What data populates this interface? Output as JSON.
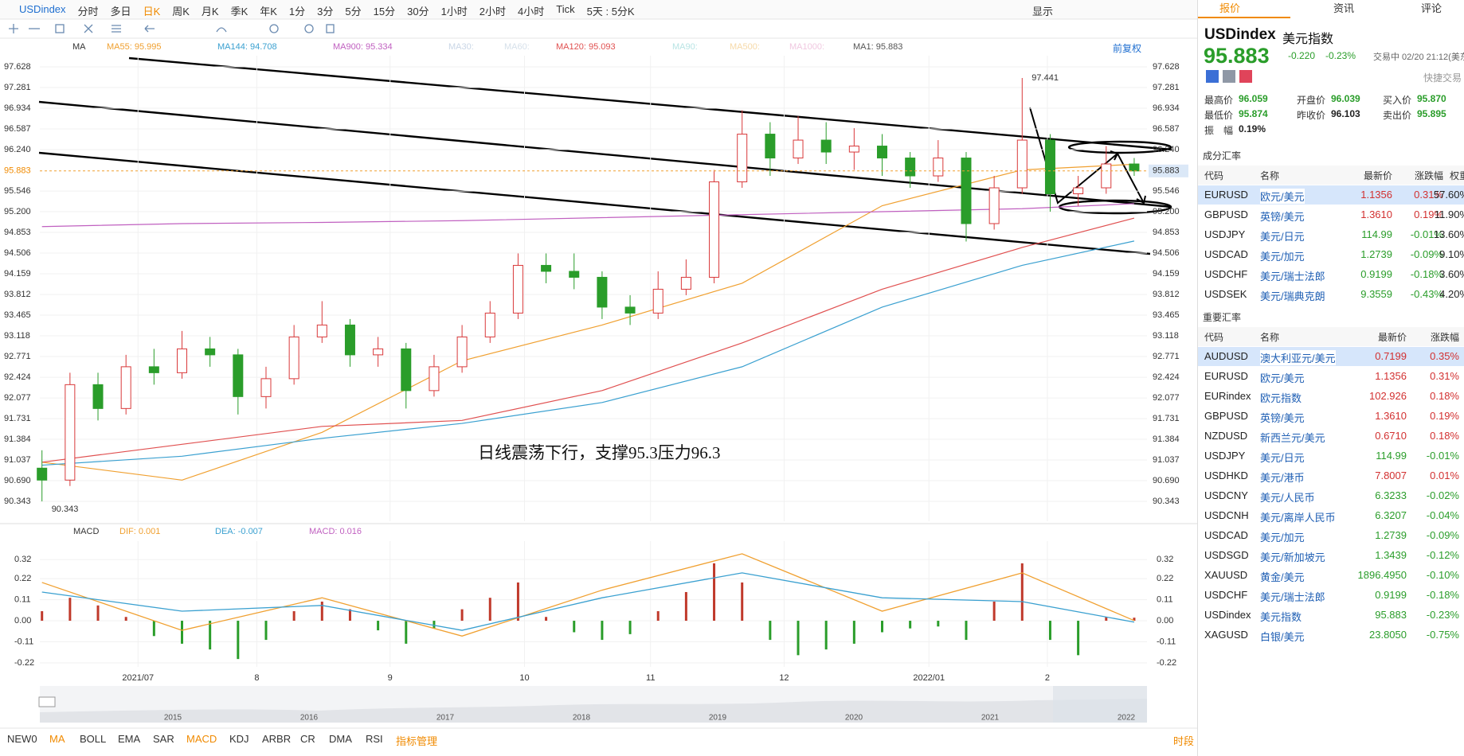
{
  "toolbar": {
    "symbol": "USDindex",
    "periods": [
      "分时",
      "多日",
      "日K",
      "周K",
      "月K",
      "季K",
      "年K",
      "1分",
      "3分",
      "5分",
      "15分",
      "30分",
      "1小时",
      "2小时",
      "4小时",
      "Tick",
      "5天 : 5分K"
    ],
    "active": 2,
    "display": "显示"
  },
  "ma_legend": {
    "name": "MA",
    "adjust": "前复权",
    "items": [
      {
        "label": "MA55: 95.995",
        "color": "#f0a030"
      },
      {
        "label": "MA144: 94.708",
        "color": "#3aa0d0"
      },
      {
        "label": "MA900: 95.334",
        "color": "#c060c0"
      },
      {
        "label": "MA30:",
        "color": "#c9d6e6"
      },
      {
        "label": "MA60:",
        "color": "#d6e0ea"
      },
      {
        "label": "MA120: 95.093",
        "color": "#e05050"
      },
      {
        "label": "MA90:",
        "color": "#b8e4e4"
      },
      {
        "label": "MA500:",
        "color": "#f6d9a8"
      },
      {
        "label": "MA1000:",
        "color": "#f0c8e0"
      },
      {
        "label": "MA1: 95.883",
        "color": "#555555"
      }
    ]
  },
  "chart_data": [
    {
      "type": "candlestick",
      "ylim": [
        90.01,
        97.815
      ],
      "yticks": [
        97.628,
        97.281,
        96.934,
        96.587,
        {
          "value": 96.24,
          "label": "96.240"
        },
        95.546,
        {
          "value": 95.2,
          "label": "95.200"
        },
        94.853,
        94.506,
        94.159,
        93.812,
        93.465,
        93.118,
        92.771,
        92.424,
        92.077,
        91.731,
        91.384,
        91.037,
        {
          "value": 90.69,
          "label": "90.690"
        },
        90.343
      ],
      "xticks": [
        {
          "value": 3.43,
          "label": "2021/07"
        },
        {
          "value": 7.67,
          "label": "8"
        },
        {
          "value": 12.43,
          "label": "9"
        },
        {
          "value": 17.23,
          "label": "10"
        },
        {
          "value": 21.73,
          "label": "11"
        },
        {
          "value": 26.5,
          "label": "12"
        },
        {
          "value": 31.67,
          "label": "2022/01"
        },
        {
          "value": 35.9,
          "label": "2"
        }
      ],
      "grid": true,
      "up_color": "#d9393a",
      "down_color": "#2a9d2a",
      "candles": [
        [
          90.9,
          91.2,
          90.343,
          90.7
        ],
        [
          90.7,
          92.5,
          90.6,
          92.3
        ],
        [
          92.3,
          92.5,
          91.7,
          91.9
        ],
        [
          91.9,
          92.8,
          91.8,
          92.6
        ],
        [
          92.6,
          92.9,
          92.3,
          92.5
        ],
        [
          92.5,
          93.2,
          92.4,
          92.9
        ],
        [
          92.9,
          93.1,
          92.6,
          92.8
        ],
        [
          92.8,
          92.9,
          91.8,
          92.1
        ],
        [
          92.1,
          92.6,
          91.9,
          92.4
        ],
        [
          92.4,
          93.3,
          92.3,
          93.1
        ],
        [
          93.1,
          93.7,
          93.0,
          93.3
        ],
        [
          93.3,
          93.4,
          92.6,
          92.8
        ],
        [
          92.8,
          93.1,
          92.6,
          92.9
        ],
        [
          92.9,
          93.0,
          91.9,
          92.2
        ],
        [
          92.2,
          92.8,
          92.1,
          92.6
        ],
        [
          92.6,
          93.3,
          92.5,
          93.1
        ],
        [
          93.1,
          93.7,
          93.0,
          93.5
        ],
        [
          93.5,
          94.5,
          93.4,
          94.3
        ],
        [
          94.3,
          94.5,
          94.0,
          94.2
        ],
        [
          94.2,
          94.5,
          93.9,
          94.1
        ],
        [
          94.1,
          94.2,
          93.4,
          93.6
        ],
        [
          93.6,
          93.8,
          93.3,
          93.5
        ],
        [
          93.5,
          94.2,
          93.4,
          93.9
        ],
        [
          93.9,
          94.4,
          93.8,
          94.1
        ],
        [
          94.1,
          95.9,
          94.0,
          95.7
        ],
        [
          95.7,
          96.9,
          95.6,
          96.5
        ],
        [
          96.5,
          96.7,
          95.8,
          96.1
        ],
        [
          96.1,
          96.8,
          96.0,
          96.4
        ],
        [
          96.4,
          96.7,
          96.0,
          96.2
        ],
        [
          96.2,
          96.6,
          95.9,
          96.3
        ],
        [
          96.3,
          96.5,
          95.8,
          96.1
        ],
        [
          96.1,
          96.2,
          95.6,
          95.8
        ],
        [
          95.8,
          96.4,
          95.7,
          96.1
        ],
        [
          96.1,
          96.2,
          94.7,
          95.0
        ],
        [
          95.0,
          95.8,
          94.9,
          95.6
        ],
        [
          95.6,
          97.441,
          95.5,
          96.4
        ],
        [
          96.4,
          96.5,
          95.2,
          95.5
        ],
        [
          95.5,
          95.8,
          95.3,
          95.6
        ],
        [
          95.6,
          96.3,
          95.5,
          96.0
        ],
        [
          96.0,
          96.1,
          95.8,
          95.883
        ]
      ],
      "ma": {
        "x": [
          0,
          5,
          10,
          15,
          20,
          25,
          30,
          35,
          39
        ],
        "series": [
          {
            "color": "#f0a030",
            "values": [
              91.0,
              90.7,
              91.5,
              92.7,
              93.3,
              94.0,
              95.3,
              95.9,
              95.995
            ]
          },
          {
            "color": "#e05050",
            "values": [
              91.0,
              91.3,
              91.6,
              91.7,
              92.2,
              93.0,
              93.9,
              94.6,
              95.093
            ]
          },
          {
            "color": "#3aa0d0",
            "values": [
              90.95,
              91.1,
              91.4,
              91.65,
              92.0,
              92.6,
              93.6,
              94.3,
              94.708
            ]
          },
          {
            "color": "#c060c0",
            "values": [
              94.95,
              95.0,
              95.02,
              95.05,
              95.1,
              95.15,
              95.2,
              95.25,
              95.334
            ]
          }
        ]
      },
      "last_price": 95.883,
      "annotations": [
        {
          "value": 97.441,
          "at": 35
        },
        {
          "value": 90.343,
          "at": 0
        }
      ],
      "note": "日线震荡下行，支撑95.3压力96.3"
    },
    {
      "type": "macd",
      "title": "MACD",
      "legend": [
        {
          "label": "DIF: 0.001",
          "color": "#f0a030"
        },
        {
          "label": "DEA: -0.007",
          "color": "#3aa0d0"
        },
        {
          "label": "MACD: 0.016",
          "color": "#c060c0"
        }
      ],
      "ylim": [
        -0.241,
        0.416
      ],
      "yticks": [
        0.32,
        0.22,
        0.11,
        {
          "value": 0,
          "label": "0.00"
        },
        -0.11,
        -0.22
      ],
      "up_color": "#c0392b",
      "down_color": "#2a9d2a",
      "histogram": [
        0.05,
        0.12,
        0.08,
        0.02,
        -0.08,
        -0.12,
        -0.15,
        -0.2,
        -0.1,
        0.05,
        0.1,
        0.06,
        -0.05,
        -0.12,
        -0.04,
        0.06,
        0.12,
        0.2,
        0.02,
        -0.06,
        -0.1,
        -0.07,
        0.05,
        0.15,
        0.3,
        0.2,
        -0.1,
        -0.18,
        -0.15,
        -0.12,
        -0.06,
        -0.04,
        -0.03,
        -0.1,
        0.1,
        0.3,
        -0.1,
        -0.18,
        0.02,
        0.016
      ],
      "x": [
        0,
        5,
        10,
        15,
        20,
        25,
        30,
        35,
        39
      ],
      "series": [
        {
          "color": "#f0a030",
          "values": [
            0.2,
            -0.05,
            0.12,
            -0.08,
            0.16,
            0.35,
            0.05,
            0.25,
            0.001
          ]
        },
        {
          "color": "#3aa0d0",
          "values": [
            0.15,
            0.05,
            0.08,
            -0.05,
            0.12,
            0.25,
            0.12,
            0.1,
            -0.007
          ]
        }
      ]
    }
  ],
  "overview": {
    "years": [
      "2015",
      "2016",
      "2017",
      "2018",
      "2019",
      "2020",
      "2021",
      "2022"
    ]
  },
  "indicator_tabs": {
    "items": [
      "NEW0",
      "MA",
      "BOLL",
      "EMA",
      "SAR",
      "MACD",
      "KDJ",
      "ARBR",
      "CR",
      "DMA",
      "RSI"
    ],
    "active": [
      1,
      5
    ],
    "manage": "指标管理",
    "session": "时段"
  },
  "quote": {
    "tabs": [
      "报价",
      "资讯",
      "评论"
    ],
    "symbol": "USDindex",
    "name": "美元指数",
    "price": "95.883",
    "change": "-0.220",
    "change_pct": "-0.23%",
    "status": "交易中 02/20 21:12(美东)",
    "quick_trade": "快捷交易",
    "stats": [
      {
        "label": "最高价",
        "value": "96.059",
        "color": "#2a9d2a"
      },
      {
        "label": "开盘价",
        "value": "96.039",
        "color": "#2a9d2a"
      },
      {
        "label": "买入价",
        "value": "95.870",
        "color": "#2a9d2a"
      },
      {
        "label": "最低价",
        "value": "95.874",
        "color": "#2a9d2a"
      },
      {
        "label": "昨收价",
        "value": "96.103",
        "color": "#222222"
      },
      {
        "label": "卖出价",
        "value": "95.895",
        "color": "#2a9d2a"
      },
      {
        "label": "振　幅",
        "value": "0.19%",
        "color": "#222222"
      }
    ]
  },
  "components": {
    "title": "成分汇率",
    "headers": [
      "代码",
      "名称",
      "最新价",
      "涨跌幅",
      "权重"
    ],
    "selected": 0,
    "rows": [
      [
        "EURUSD",
        "欧元/美元",
        "1.1356",
        "0.31%",
        "57.60%"
      ],
      [
        "GBPUSD",
        "英镑/美元",
        "1.3610",
        "0.19%",
        "11.90%"
      ],
      [
        "USDJPY",
        "美元/日元",
        "114.99",
        "-0.01%",
        "13.60%"
      ],
      [
        "USDCAD",
        "美元/加元",
        "1.2739",
        "-0.09%",
        "9.10%"
      ],
      [
        "USDCHF",
        "美元/瑞士法郎",
        "0.9199",
        "-0.18%",
        "3.60%"
      ],
      [
        "USDSEK",
        "美元/瑞典克朗",
        "9.3559",
        "-0.43%",
        "4.20%"
      ]
    ]
  },
  "major": {
    "title": "重要汇率",
    "headers": [
      "代码",
      "名称",
      "最新价",
      "涨跌幅"
    ],
    "selected": 0,
    "rows": [
      [
        "AUDUSD",
        "澳大利亚元/美元",
        "0.7199",
        "0.35%"
      ],
      [
        "EURUSD",
        "欧元/美元",
        "1.1356",
        "0.31%"
      ],
      [
        "EURindex",
        "欧元指数",
        "102.926",
        "0.18%"
      ],
      [
        "GBPUSD",
        "英镑/美元",
        "1.3610",
        "0.19%"
      ],
      [
        "NZDUSD",
        "新西兰元/美元",
        "0.6710",
        "0.18%"
      ],
      [
        "USDJPY",
        "美元/日元",
        "114.99",
        "-0.01%"
      ],
      [
        "USDHKD",
        "美元/港币",
        "7.8007",
        "0.01%"
      ],
      [
        "USDCNY",
        "美元/人民币",
        "6.3233",
        "-0.02%"
      ],
      [
        "USDCNH",
        "美元/离岸人民币",
        "6.3207",
        "-0.04%"
      ],
      [
        "USDCAD",
        "美元/加元",
        "1.2739",
        "-0.09%"
      ],
      [
        "USDSGD",
        "美元/新加坡元",
        "1.3439",
        "-0.12%"
      ],
      [
        "XAUUSD",
        "黄金/美元",
        "1896.4950",
        "-0.10%"
      ],
      [
        "USDCHF",
        "美元/瑞士法郎",
        "0.9199",
        "-0.18%"
      ],
      [
        "USDindex",
        "美元指数",
        "95.883",
        "-0.23%"
      ],
      [
        "XAGUSD",
        "白银/美元",
        "23.8050",
        "-0.75%"
      ]
    ]
  }
}
